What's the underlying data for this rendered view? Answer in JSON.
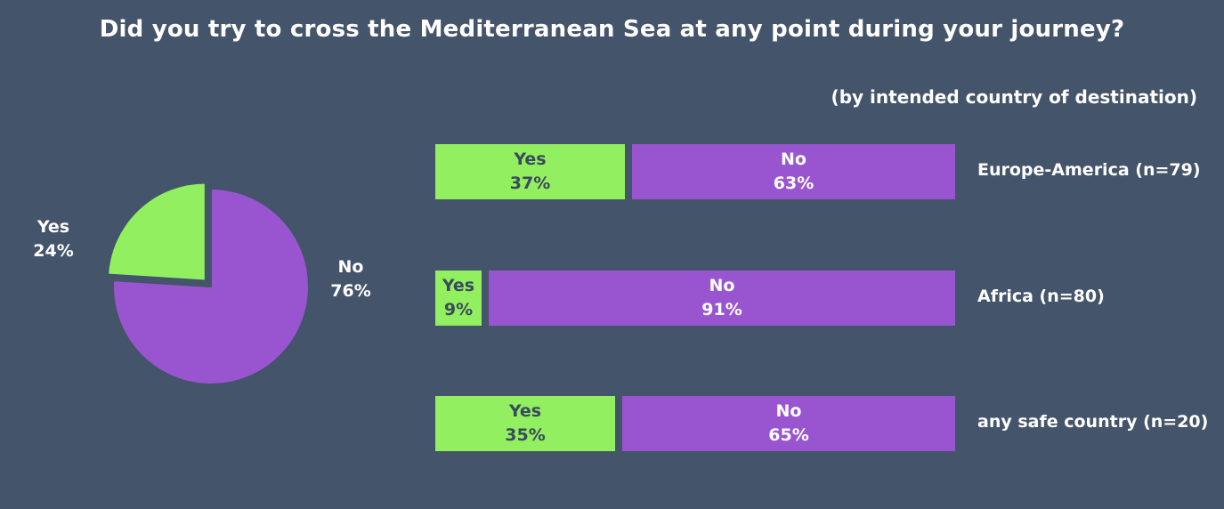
{
  "title": "Did you try to cross the Mediterranean Sea at any point during your journey?",
  "subtitle": "(by intended country of destination)",
  "colors": {
    "background": "#44546a",
    "yes": "#92f060",
    "no": "#9955d0"
  },
  "chart_data": [
    {
      "type": "pie",
      "title": "Did you try to cross the Mediterranean Sea at any point during your journey?",
      "slices": [
        {
          "label": "Yes",
          "value": 24,
          "display": "24%"
        },
        {
          "label": "No",
          "value": 76,
          "display": "76%"
        }
      ]
    },
    {
      "type": "bar",
      "subtitle": "(by intended country of destination)",
      "orientation": "horizontal-stacked-100",
      "categories": [
        "Europe-America (n=79)",
        "Africa (n=80)",
        "any safe country (n=20)"
      ],
      "series": [
        {
          "name": "Yes",
          "values": [
            37,
            9,
            35
          ],
          "displays": [
            "37%",
            "9%",
            "35%"
          ]
        },
        {
          "name": "No",
          "values": [
            63,
            91,
            65
          ],
          "displays": [
            "63%",
            "91%",
            "65%"
          ]
        }
      ]
    }
  ]
}
